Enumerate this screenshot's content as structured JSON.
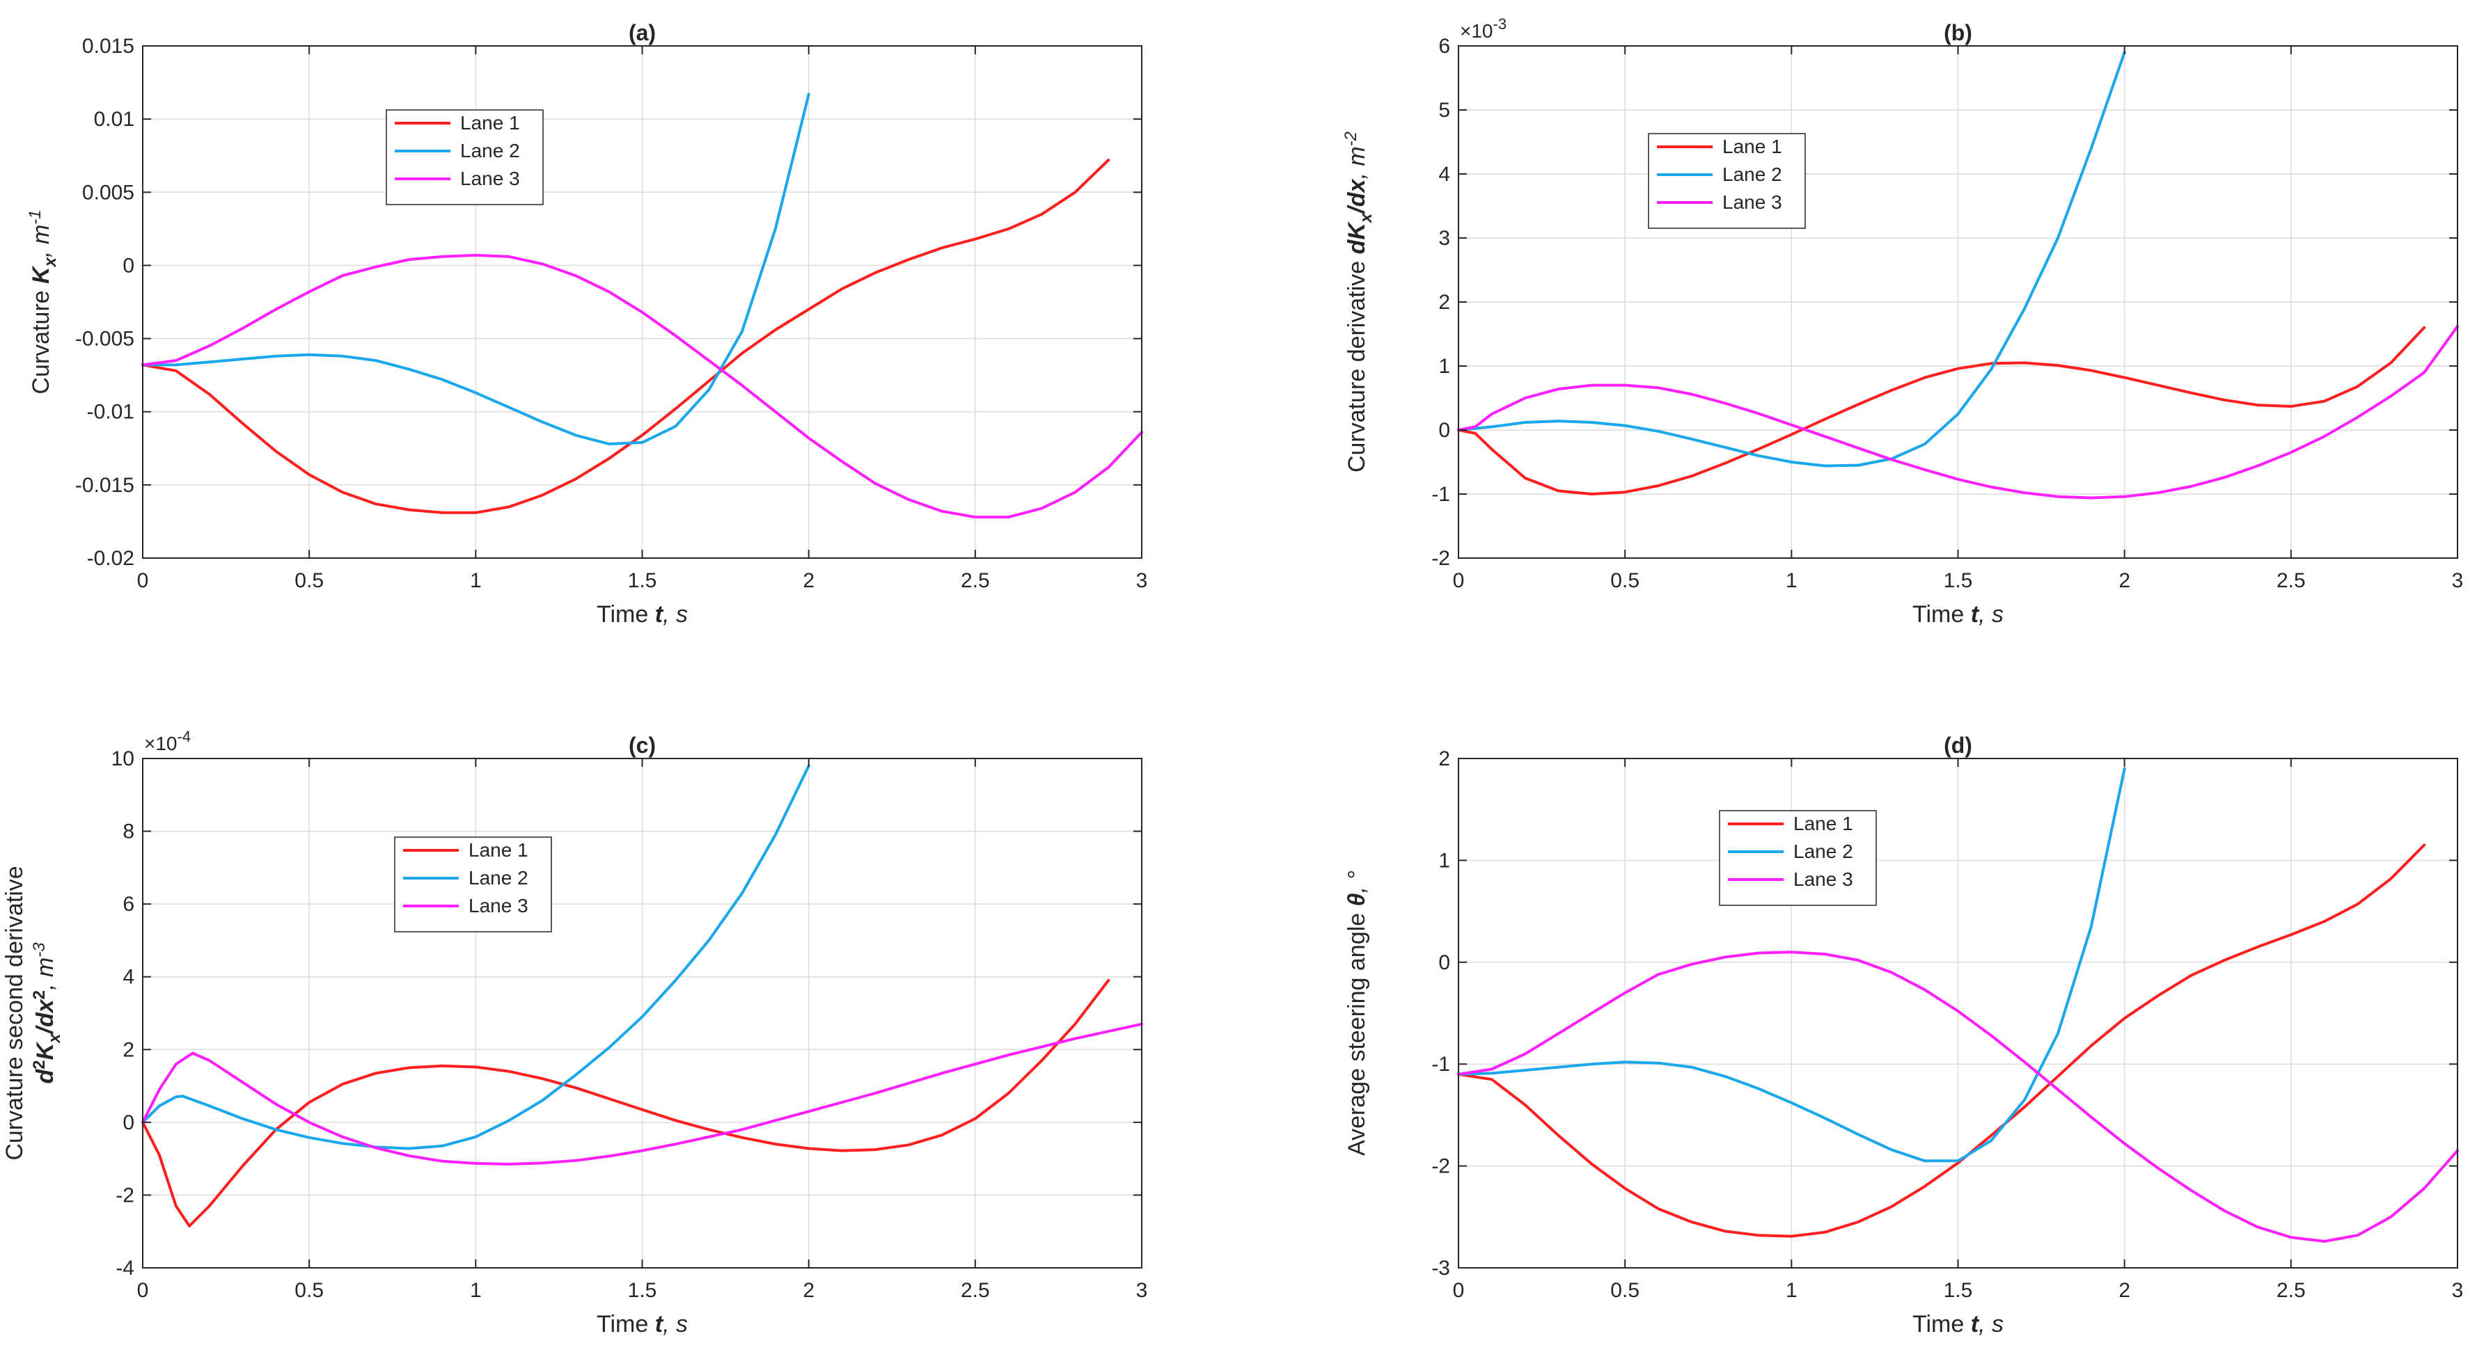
{
  "colors": {
    "lane1": "#ff1f1f",
    "lane2": "#1aa7ec",
    "lane3": "#ff1fff"
  },
  "chart_data": [
    {
      "type": "line",
      "title": "(a)",
      "xlabel": "Time t, s",
      "ylabel": "Curvature K_x, m^-1",
      "ylabel_parts": {
        "pre": "Curvature ",
        "sym": "K",
        "sub": "x",
        "post": ", m",
        "sup": "-1"
      },
      "exponent": "",
      "xlim": [
        0,
        3
      ],
      "ylim": [
        -0.02,
        0.015
      ],
      "xticks": [
        0,
        0.5,
        1,
        1.5,
        2,
        2.5,
        3
      ],
      "xtick_labels": [
        "0",
        "0.5",
        "1",
        "1.5",
        "2",
        "2.5",
        "3"
      ],
      "yticks": [
        -0.02,
        -0.015,
        -0.01,
        -0.005,
        0,
        0.005,
        0.01,
        0.015
      ],
      "ytick_labels": [
        "-0.02",
        "-0.015",
        "-0.01",
        "-0.005",
        "0",
        "0.005",
        "0.01",
        "0.015"
      ],
      "grid": true,
      "legend_position": "top-left",
      "series": [
        {
          "name": "Lane 1",
          "color": "#ff1f1f",
          "x": [
            0,
            0.1,
            0.2,
            0.3,
            0.4,
            0.5,
            0.6,
            0.7,
            0.8,
            0.9,
            1.0,
            1.1,
            1.2,
            1.3,
            1.4,
            1.5,
            1.6,
            1.7,
            1.8,
            1.9,
            2.0,
            2.1,
            2.2,
            2.3,
            2.4,
            2.5,
            2.6,
            2.7,
            2.8,
            2.9
          ],
          "y": [
            -0.0068,
            -0.0072,
            -0.0088,
            -0.0108,
            -0.0127,
            -0.0143,
            -0.0155,
            -0.0163,
            -0.0167,
            -0.0169,
            -0.0169,
            -0.0165,
            -0.0157,
            -0.0146,
            -0.0132,
            -0.0116,
            -0.0098,
            -0.0079,
            -0.006,
            -0.0044,
            -0.003,
            -0.0016,
            -0.0005,
            0.0004,
            0.0012,
            0.0018,
            0.0025,
            0.0035,
            0.005,
            0.0072
          ]
        },
        {
          "name": "Lane 2",
          "color": "#1aa7ec",
          "x": [
            0,
            0.1,
            0.2,
            0.3,
            0.4,
            0.5,
            0.6,
            0.7,
            0.8,
            0.9,
            1.0,
            1.1,
            1.2,
            1.3,
            1.4,
            1.5,
            1.6,
            1.7,
            1.8,
            1.9,
            2.0
          ],
          "y": [
            -0.0068,
            -0.0068,
            -0.0066,
            -0.0064,
            -0.0062,
            -0.0061,
            -0.0062,
            -0.0065,
            -0.0071,
            -0.0078,
            -0.0087,
            -0.0097,
            -0.0107,
            -0.0116,
            -0.0122,
            -0.0121,
            -0.011,
            -0.0085,
            -0.0045,
            0.0025,
            0.0117
          ]
        },
        {
          "name": "Lane 3",
          "color": "#ff1fff",
          "x": [
            0,
            0.1,
            0.2,
            0.3,
            0.4,
            0.5,
            0.6,
            0.7,
            0.8,
            0.9,
            1.0,
            1.1,
            1.2,
            1.3,
            1.4,
            1.5,
            1.6,
            1.7,
            1.8,
            1.9,
            2.0,
            2.1,
            2.2,
            2.3,
            2.4,
            2.5,
            2.6,
            2.7,
            2.8,
            2.9,
            3.0
          ],
          "y": [
            -0.0068,
            -0.0065,
            -0.0055,
            -0.0043,
            -0.003,
            -0.0018,
            -0.0007,
            -0.0001,
            0.0004,
            0.0006,
            0.0007,
            0.0006,
            0.0001,
            -0.0007,
            -0.0018,
            -0.0032,
            -0.0048,
            -0.0065,
            -0.0082,
            -0.01,
            -0.0118,
            -0.0134,
            -0.0149,
            -0.016,
            -0.0168,
            -0.0172,
            -0.0172,
            -0.0166,
            -0.0155,
            -0.0138,
            -0.0114
          ]
        }
      ]
    },
    {
      "type": "line",
      "title": "(b)",
      "xlabel": "Time t, s",
      "ylabel": "Curvature derivative dK_x/dx, m^-2",
      "ylabel_parts": {
        "pre": "Curvature derivative ",
        "sym": "dK",
        "sub": "x",
        "post2": "/dx",
        "post": ", m",
        "sup": "-2"
      },
      "exponent": "×10",
      "exponent_power": "-3",
      "xlim": [
        0,
        3
      ],
      "ylim": [
        -2,
        6
      ],
      "xticks": [
        0,
        0.5,
        1,
        1.5,
        2,
        2.5,
        3
      ],
      "xtick_labels": [
        "0",
        "0.5",
        "1",
        "1.5",
        "2",
        "2.5",
        "3"
      ],
      "yticks": [
        -2,
        -1,
        0,
        1,
        2,
        3,
        4,
        5,
        6
      ],
      "ytick_labels": [
        "-2",
        "-1",
        "0",
        "1",
        "2",
        "3",
        "4",
        "5",
        "6"
      ],
      "grid": true,
      "legend_position": "top-left",
      "series": [
        {
          "name": "Lane 1",
          "color": "#ff1f1f",
          "x": [
            0,
            0.05,
            0.1,
            0.2,
            0.3,
            0.4,
            0.5,
            0.6,
            0.7,
            0.8,
            0.9,
            1.0,
            1.1,
            1.2,
            1.3,
            1.4,
            1.5,
            1.6,
            1.7,
            1.8,
            1.9,
            2.0,
            2.1,
            2.2,
            2.3,
            2.4,
            2.5,
            2.6,
            2.7,
            2.8,
            2.9
          ],
          "y": [
            0,
            -0.05,
            -0.3,
            -0.75,
            -0.95,
            -1.0,
            -0.97,
            -0.87,
            -0.72,
            -0.52,
            -0.3,
            -0.07,
            0.17,
            0.4,
            0.62,
            0.82,
            0.96,
            1.04,
            1.05,
            1.01,
            0.93,
            0.82,
            0.7,
            0.58,
            0.47,
            0.39,
            0.37,
            0.45,
            0.68,
            1.05,
            1.6
          ]
        },
        {
          "name": "Lane 2",
          "color": "#1aa7ec",
          "x": [
            0,
            0.1,
            0.2,
            0.3,
            0.4,
            0.5,
            0.6,
            0.7,
            0.8,
            0.9,
            1.0,
            1.1,
            1.2,
            1.3,
            1.4,
            1.5,
            1.6,
            1.7,
            1.8,
            1.9,
            2.0
          ],
          "y": [
            0,
            0.05,
            0.12,
            0.14,
            0.12,
            0.07,
            -0.02,
            -0.14,
            -0.27,
            -0.4,
            -0.5,
            -0.56,
            -0.55,
            -0.45,
            -0.22,
            0.25,
            0.95,
            1.9,
            3.0,
            4.4,
            5.9
          ]
        },
        {
          "name": "Lane 3",
          "color": "#ff1fff",
          "x": [
            0,
            0.05,
            0.1,
            0.2,
            0.3,
            0.4,
            0.5,
            0.6,
            0.7,
            0.8,
            0.9,
            1.0,
            1.1,
            1.2,
            1.3,
            1.4,
            1.5,
            1.6,
            1.7,
            1.8,
            1.9,
            2.0,
            2.1,
            2.2,
            2.3,
            2.4,
            2.5,
            2.6,
            2.7,
            2.8,
            2.9,
            3.0
          ],
          "y": [
            0,
            0.05,
            0.25,
            0.5,
            0.64,
            0.7,
            0.7,
            0.66,
            0.56,
            0.42,
            0.26,
            0.08,
            -0.1,
            -0.28,
            -0.46,
            -0.62,
            -0.77,
            -0.89,
            -0.98,
            -1.04,
            -1.06,
            -1.04,
            -0.98,
            -0.88,
            -0.74,
            -0.56,
            -0.35,
            -0.1,
            0.2,
            0.53,
            0.9,
            1.62
          ]
        }
      ]
    },
    {
      "type": "line",
      "title": "(c)",
      "xlabel": "Time t, s",
      "ylabel": "Curvature second derivative d^2K_x/dx^2, m^-3",
      "ylabel_line1": "Curvature second derivative",
      "ylabel_parts": {
        "pre": "",
        "sym": "d",
        "sup0": "2",
        "sym2": "K",
        "sub": "x",
        "post2": "/dx",
        "sup2": "2",
        "post": ", m",
        "sup": "-3"
      },
      "exponent": "×10",
      "exponent_power": "-4",
      "xlim": [
        0,
        3
      ],
      "ylim": [
        -4,
        10
      ],
      "xticks": [
        0,
        0.5,
        1,
        1.5,
        2,
        2.5,
        3
      ],
      "xtick_labels": [
        "0",
        "0.5",
        "1",
        "1.5",
        "2",
        "2.5",
        "3"
      ],
      "yticks": [
        -4,
        -2,
        0,
        2,
        4,
        6,
        8,
        10
      ],
      "ytick_labels": [
        "-4",
        "-2",
        "0",
        "2",
        "4",
        "6",
        "8",
        "10"
      ],
      "grid": true,
      "legend_position": "top-left",
      "series": [
        {
          "name": "Lane 1",
          "color": "#ff1f1f",
          "x": [
            0,
            0.05,
            0.1,
            0.14,
            0.2,
            0.3,
            0.4,
            0.5,
            0.6,
            0.7,
            0.8,
            0.9,
            1.0,
            1.1,
            1.2,
            1.3,
            1.4,
            1.5,
            1.6,
            1.7,
            1.8,
            1.9,
            2.0,
            2.1,
            2.2,
            2.3,
            2.4,
            2.5,
            2.6,
            2.7,
            2.8,
            2.9
          ],
          "y": [
            0,
            -0.9,
            -2.3,
            -2.85,
            -2.3,
            -1.2,
            -0.2,
            0.55,
            1.05,
            1.35,
            1.5,
            1.55,
            1.52,
            1.4,
            1.2,
            0.95,
            0.65,
            0.35,
            0.05,
            -0.2,
            -0.42,
            -0.6,
            -0.72,
            -0.78,
            -0.75,
            -0.62,
            -0.35,
            0.1,
            0.8,
            1.7,
            2.7,
            3.9
          ]
        },
        {
          "name": "Lane 2",
          "color": "#1aa7ec",
          "x": [
            0,
            0.05,
            0.1,
            0.12,
            0.2,
            0.3,
            0.4,
            0.5,
            0.6,
            0.7,
            0.8,
            0.9,
            1.0,
            1.1,
            1.2,
            1.3,
            1.4,
            1.5,
            1.6,
            1.7,
            1.8,
            1.9,
            2.0
          ],
          "y": [
            0,
            0.45,
            0.7,
            0.72,
            0.45,
            0.1,
            -0.2,
            -0.42,
            -0.58,
            -0.68,
            -0.72,
            -0.65,
            -0.4,
            0.05,
            0.6,
            1.3,
            2.05,
            2.9,
            3.9,
            5.0,
            6.3,
            7.9,
            9.8
          ]
        },
        {
          "name": "Lane 3",
          "color": "#ff1fff",
          "x": [
            0,
            0.05,
            0.1,
            0.15,
            0.2,
            0.3,
            0.4,
            0.5,
            0.6,
            0.7,
            0.8,
            0.9,
            1.0,
            1.1,
            1.2,
            1.3,
            1.4,
            1.5,
            1.6,
            1.7,
            1.8,
            1.9,
            2.0,
            2.2,
            2.4,
            2.6,
            2.8,
            3.0
          ],
          "y": [
            0,
            0.9,
            1.6,
            1.9,
            1.7,
            1.1,
            0.5,
            0.0,
            -0.4,
            -0.7,
            -0.92,
            -1.07,
            -1.13,
            -1.15,
            -1.12,
            -1.05,
            -0.93,
            -0.78,
            -0.6,
            -0.4,
            -0.2,
            0.05,
            0.3,
            0.8,
            1.35,
            1.85,
            2.3,
            2.7
          ]
        }
      ]
    },
    {
      "type": "line",
      "title": "(d)",
      "xlabel": "Time t, s",
      "ylabel": "Average steering angle θ, °",
      "ylabel_parts": {
        "pre": "Average steering angle ",
        "sym": "θ",
        "sub": "",
        "post": ", °",
        "sup": ""
      },
      "exponent": "",
      "xlim": [
        0,
        3
      ],
      "ylim": [
        -3,
        2
      ],
      "xticks": [
        0,
        0.5,
        1,
        1.5,
        2,
        2.5,
        3
      ],
      "xtick_labels": [
        "0",
        "0.5",
        "1",
        "1.5",
        "2",
        "2.5",
        "3"
      ],
      "yticks": [
        -3,
        -2,
        -1,
        0,
        1,
        2
      ],
      "ytick_labels": [
        "-3",
        "-2",
        "-1",
        "0",
        "1",
        "2"
      ],
      "grid": true,
      "legend_position": "top-left",
      "series": [
        {
          "name": "Lane 1",
          "color": "#ff1f1f",
          "x": [
            0,
            0.1,
            0.2,
            0.3,
            0.4,
            0.5,
            0.6,
            0.7,
            0.8,
            0.9,
            1.0,
            1.1,
            1.2,
            1.3,
            1.4,
            1.5,
            1.6,
            1.7,
            1.8,
            1.9,
            2.0,
            2.1,
            2.2,
            2.3,
            2.4,
            2.5,
            2.6,
            2.7,
            2.8,
            2.9
          ],
          "y": [
            -1.1,
            -1.15,
            -1.4,
            -1.7,
            -1.98,
            -2.22,
            -2.42,
            -2.55,
            -2.64,
            -2.68,
            -2.69,
            -2.65,
            -2.55,
            -2.4,
            -2.2,
            -1.97,
            -1.7,
            -1.42,
            -1.12,
            -0.82,
            -0.55,
            -0.33,
            -0.13,
            0.02,
            0.15,
            0.27,
            0.4,
            0.57,
            0.82,
            1.15
          ]
        },
        {
          "name": "Lane 2",
          "color": "#1aa7ec",
          "x": [
            0,
            0.1,
            0.2,
            0.3,
            0.4,
            0.5,
            0.6,
            0.7,
            0.8,
            0.9,
            1.0,
            1.1,
            1.2,
            1.3,
            1.4,
            1.5,
            1.6,
            1.7,
            1.8,
            1.9,
            2.0
          ],
          "y": [
            -1.1,
            -1.09,
            -1.06,
            -1.03,
            -1.0,
            -0.98,
            -0.99,
            -1.03,
            -1.12,
            -1.24,
            -1.38,
            -1.53,
            -1.69,
            -1.84,
            -1.95,
            -1.95,
            -1.75,
            -1.35,
            -0.7,
            0.35,
            1.9
          ]
        },
        {
          "name": "Lane 3",
          "color": "#ff1fff",
          "x": [
            0,
            0.1,
            0.2,
            0.3,
            0.4,
            0.5,
            0.6,
            0.7,
            0.8,
            0.9,
            1.0,
            1.1,
            1.2,
            1.3,
            1.4,
            1.5,
            1.6,
            1.7,
            1.8,
            1.9,
            2.0,
            2.1,
            2.2,
            2.3,
            2.4,
            2.5,
            2.6,
            2.7,
            2.8,
            2.9,
            3.0
          ],
          "y": [
            -1.1,
            -1.05,
            -0.9,
            -0.7,
            -0.5,
            -0.3,
            -0.12,
            -0.02,
            0.05,
            0.09,
            0.1,
            0.08,
            0.02,
            -0.1,
            -0.27,
            -0.48,
            -0.72,
            -0.98,
            -1.25,
            -1.52,
            -1.78,
            -2.02,
            -2.24,
            -2.44,
            -2.6,
            -2.7,
            -2.74,
            -2.68,
            -2.5,
            -2.22,
            -1.85
          ]
        }
      ]
    }
  ]
}
